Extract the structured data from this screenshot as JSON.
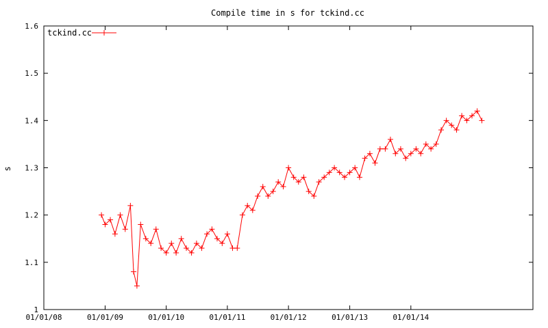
{
  "chart_data": {
    "type": "line",
    "title": "Compile time in s for tckind.cc",
    "xlabel": "",
    "ylabel": "s",
    "xlim": [
      "2008-01-01",
      "2015-12-31"
    ],
    "ylim": [
      1.0,
      1.6
    ],
    "x_tick_labels": [
      "01/01/08",
      "01/01/09",
      "01/01/10",
      "01/01/11",
      "01/01/12",
      "01/01/13",
      "01/01/14"
    ],
    "y_tick_labels": [
      "1",
      "1.1",
      "1.2",
      "1.3",
      "1.4",
      "1.5",
      "1.6"
    ],
    "grid": false,
    "legend_position": "top-left",
    "color": "#ff0000",
    "series": [
      {
        "name": "tckind.cc",
        "marker": "plus",
        "x": [
          "2008-12-10",
          "2009-01-01",
          "2009-02-01",
          "2009-03-01",
          "2009-04-01",
          "2009-05-01",
          "2009-06-01",
          "2009-06-20",
          "2009-07-10",
          "2009-08-01",
          "2009-09-01",
          "2009-10-01",
          "2009-11-01",
          "2009-12-01",
          "2010-01-01",
          "2010-02-01",
          "2010-03-01",
          "2010-04-01",
          "2010-05-01",
          "2010-06-01",
          "2010-07-01",
          "2010-08-01",
          "2010-09-01",
          "2010-10-01",
          "2010-11-01",
          "2010-12-01",
          "2011-01-01",
          "2011-02-01",
          "2011-03-01",
          "2011-04-01",
          "2011-05-01",
          "2011-06-01",
          "2011-07-01",
          "2011-08-01",
          "2011-09-01",
          "2011-10-01",
          "2011-11-01",
          "2011-12-01",
          "2012-01-01",
          "2012-02-01",
          "2012-03-01",
          "2012-04-01",
          "2012-05-01",
          "2012-06-01",
          "2012-07-01",
          "2012-08-01",
          "2012-09-01",
          "2012-10-01",
          "2012-11-01",
          "2012-12-01",
          "2013-01-01",
          "2013-02-01",
          "2013-03-01",
          "2013-04-01",
          "2013-05-01",
          "2013-06-01",
          "2013-07-01",
          "2013-08-01",
          "2013-09-01",
          "2013-10-01",
          "2013-11-01",
          "2013-12-01",
          "2014-01-01",
          "2014-02-01",
          "2014-03-01",
          "2014-04-01",
          "2014-05-01",
          "2014-06-01",
          "2014-07-01",
          "2014-08-01",
          "2014-09-01",
          "2014-10-01",
          "2014-11-01",
          "2014-12-01",
          "2015-01-01",
          "2015-02-01",
          "2015-03-01"
        ],
        "y": [
          1.2,
          1.18,
          1.19,
          1.16,
          1.2,
          1.17,
          1.22,
          1.08,
          1.05,
          1.18,
          1.15,
          1.14,
          1.17,
          1.13,
          1.12,
          1.14,
          1.12,
          1.15,
          1.13,
          1.12,
          1.14,
          1.13,
          1.16,
          1.17,
          1.15,
          1.14,
          1.16,
          1.13,
          1.13,
          1.2,
          1.22,
          1.21,
          1.24,
          1.26,
          1.24,
          1.25,
          1.27,
          1.26,
          1.3,
          1.28,
          1.27,
          1.28,
          1.25,
          1.24,
          1.27,
          1.28,
          1.29,
          1.3,
          1.29,
          1.28,
          1.29,
          1.3,
          1.28,
          1.32,
          1.33,
          1.31,
          1.34,
          1.34,
          1.36,
          1.33,
          1.34,
          1.32,
          1.33,
          1.34,
          1.33,
          1.35,
          1.34,
          1.35,
          1.38,
          1.4,
          1.39,
          1.38,
          1.41,
          1.4,
          1.41,
          1.42,
          1.4
        ]
      }
    ]
  }
}
